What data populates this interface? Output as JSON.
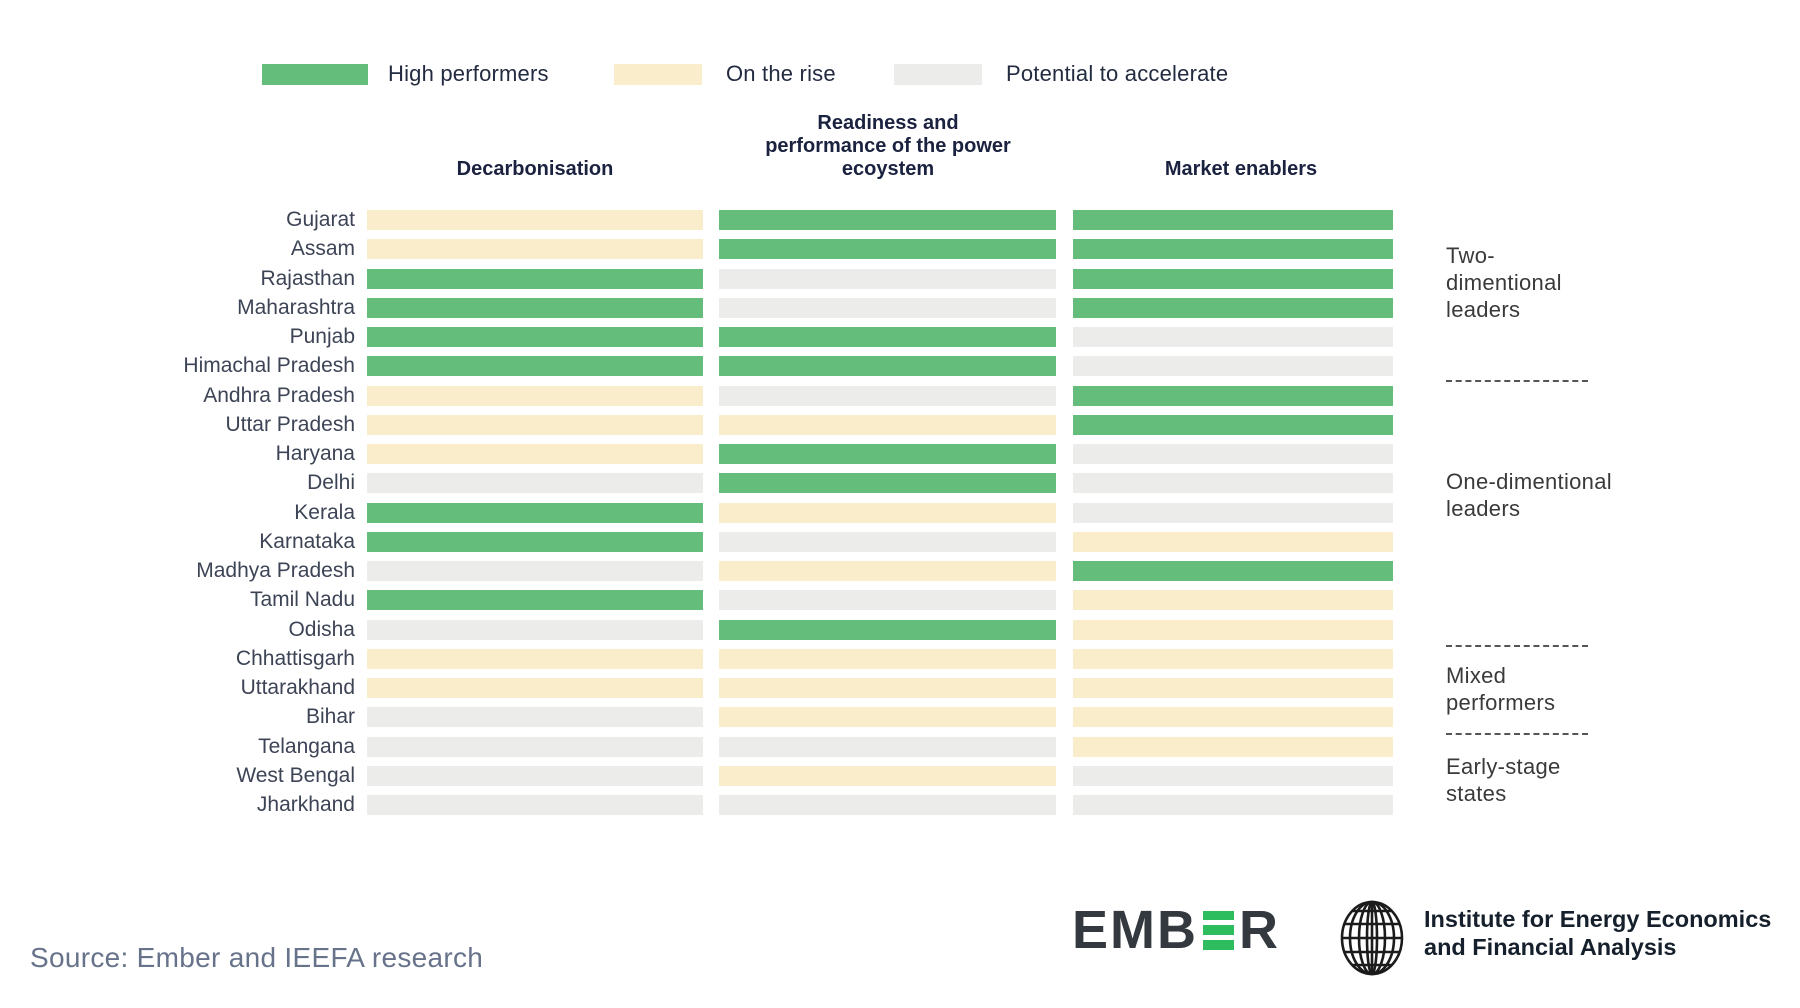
{
  "legend": {
    "items": [
      {
        "key": "high",
        "label": "High performers",
        "color": "#65BD7C"
      },
      {
        "key": "rise",
        "label": "On the rise",
        "color": "#FAEDCB"
      },
      {
        "key": "potential",
        "label": "Potential to accelerate",
        "color": "#ECEDEB"
      }
    ]
  },
  "chart_data": {
    "type": "heatmap",
    "legend_position": "top",
    "columns": [
      "Decarbonisation",
      "Readiness and\nperformance of the power\necoystem",
      "Market enablers"
    ],
    "value_labels": {
      "high": "High performers",
      "rise": "On the rise",
      "potential": "Potential to accelerate"
    },
    "rows": [
      {
        "state": "Gujarat",
        "values": [
          "rise",
          "high",
          "high"
        ]
      },
      {
        "state": "Assam",
        "values": [
          "rise",
          "high",
          "high"
        ]
      },
      {
        "state": "Rajasthan",
        "values": [
          "high",
          "potential",
          "high"
        ]
      },
      {
        "state": "Maharashtra",
        "values": [
          "high",
          "potential",
          "high"
        ]
      },
      {
        "state": "Punjab",
        "values": [
          "high",
          "high",
          "potential"
        ]
      },
      {
        "state": "Himachal Pradesh",
        "values": [
          "high",
          "high",
          "potential"
        ]
      },
      {
        "state": "Andhra Pradesh",
        "values": [
          "rise",
          "potential",
          "high"
        ]
      },
      {
        "state": "Uttar Pradesh",
        "values": [
          "rise",
          "rise",
          "high"
        ]
      },
      {
        "state": "Haryana",
        "values": [
          "rise",
          "high",
          "potential"
        ]
      },
      {
        "state": "Delhi",
        "values": [
          "potential",
          "high",
          "potential"
        ]
      },
      {
        "state": "Kerala",
        "values": [
          "high",
          "rise",
          "potential"
        ]
      },
      {
        "state": "Karnataka",
        "values": [
          "high",
          "potential",
          "rise"
        ]
      },
      {
        "state": "Madhya Pradesh",
        "values": [
          "potential",
          "rise",
          "high"
        ]
      },
      {
        "state": "Tamil Nadu",
        "values": [
          "high",
          "potential",
          "rise"
        ]
      },
      {
        "state": "Odisha",
        "values": [
          "potential",
          "high",
          "rise"
        ]
      },
      {
        "state": "Chhattisgarh",
        "values": [
          "rise",
          "rise",
          "rise"
        ]
      },
      {
        "state": "Uttarakhand",
        "values": [
          "rise",
          "rise",
          "rise"
        ]
      },
      {
        "state": "Bihar",
        "values": [
          "potential",
          "rise",
          "rise"
        ]
      },
      {
        "state": "Telangana",
        "values": [
          "potential",
          "potential",
          "rise"
        ]
      },
      {
        "state": "West Bengal",
        "values": [
          "potential",
          "rise",
          "potential"
        ]
      },
      {
        "state": "Jharkhand",
        "values": [
          "potential",
          "potential",
          "potential"
        ]
      }
    ],
    "groups": [
      {
        "label": "Two-\ndimentional\nleaders",
        "states": [
          "Gujarat",
          "Assam",
          "Rajasthan",
          "Maharashtra",
          "Punjab",
          "Himachal Pradesh"
        ]
      },
      {
        "label": "One-dimentional\nleaders",
        "states": [
          "Andhra Pradesh",
          "Uttar Pradesh",
          "Haryana",
          "Delhi",
          "Kerala",
          "Karnataka",
          "Madhya Pradesh",
          "Tamil Nadu",
          "Odisha"
        ]
      },
      {
        "label": "Mixed\nperformers",
        "states": [
          "Chhattisgarh",
          "Uttarakhand",
          "Bihar"
        ]
      },
      {
        "label": "Early-stage\nstates",
        "states": [
          "Telangana",
          "West Bengal",
          "Jharkhand"
        ]
      }
    ]
  },
  "footer": {
    "source": "Source: Ember and IEEFA research",
    "ember_text_before": "EMB",
    "ember_text_after": "R",
    "ieefa_line1": "Institute for Energy Economics",
    "ieefa_line2": "and Financial Analysis"
  }
}
